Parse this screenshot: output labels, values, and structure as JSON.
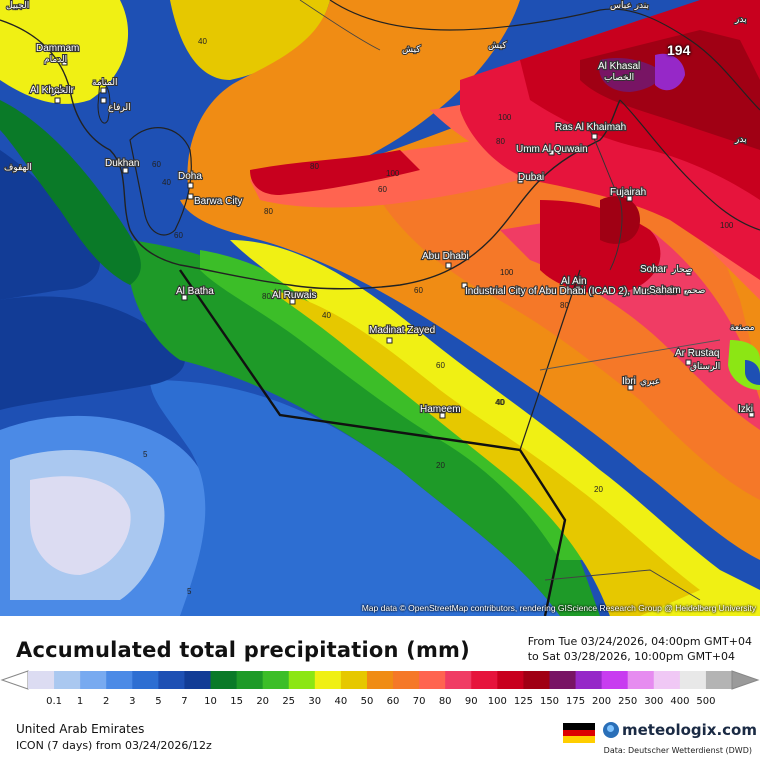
{
  "map": {
    "attribution": "Map data © OpenStreetMap contributors, rendering GIScience Research Group @ Heidelberg University",
    "peak_value": "194",
    "cities": [
      {
        "name": "Dammam",
        "name_ar": "الدمام"
      },
      {
        "name": "Al Khobar",
        "name_ar": "الخبر"
      },
      {
        "name": "المنامة",
        "name_ar": "الرفاع"
      },
      {
        "name": "Dukhan",
        "name_ar": ""
      },
      {
        "name": "Doha",
        "name_ar": ""
      },
      {
        "name": "Barwa City",
        "name_ar": ""
      },
      {
        "name": "Al Batha",
        "name_ar": ""
      },
      {
        "name": "Al Ruwais",
        "name_ar": ""
      },
      {
        "name": "Madinat Zayed",
        "name_ar": ""
      },
      {
        "name": "Hameem",
        "name_ar": ""
      },
      {
        "name": "Abu Dhabi",
        "name_ar": ""
      },
      {
        "name": "Industrial City of Abu Dhabi (ICAD 2), Mussafah",
        "name_ar": ""
      },
      {
        "name": "Dubai",
        "name_ar": ""
      },
      {
        "name": "Umm Al Quwain",
        "name_ar": ""
      },
      {
        "name": "Ras Al Khaimah",
        "name_ar": ""
      },
      {
        "name": "Al Khasal",
        "name_ar": "الخصاب"
      },
      {
        "name": "Fujairah",
        "name_ar": ""
      },
      {
        "name": "Al Ain",
        "name_ar": ""
      },
      {
        "name": "Sohar",
        "name_ar": "صحار"
      },
      {
        "name": "Saham",
        "name_ar": "صحم"
      },
      {
        "name": "Ar Rustaq",
        "name_ar": "الرستاق"
      },
      {
        "name": "Ibri",
        "name_ar": "عبري"
      },
      {
        "name": "Izki",
        "name_ar": ""
      }
    ],
    "extra_labels": [
      "الجبيل",
      "الهفوف",
      "كيش",
      "كيش",
      "بندر عباس",
      "بدر",
      "بدر",
      "مصنعة"
    ],
    "contour_labels": [
      "40",
      "60",
      "40",
      "60",
      "80",
      "100",
      "80",
      "60",
      "80",
      "100",
      "60",
      "40",
      "40",
      "60",
      "80",
      "100",
      "80",
      "40",
      "20",
      "20",
      "5",
      "5",
      "100"
    ]
  },
  "header": {
    "title": "Accumulated total precipitation (mm)",
    "period_from": "From Tue 03/24/2026, 04:00pm GMT+04",
    "period_to": "to Sat 03/28/2026, 10:00pm GMT+04"
  },
  "legend": {
    "ticks": [
      "0.1",
      "1",
      "2",
      "3",
      "5",
      "7",
      "10",
      "15",
      "20",
      "25",
      "30",
      "40",
      "50",
      "60",
      "70",
      "80",
      "90",
      "100",
      "125",
      "150",
      "175",
      "200",
      "250",
      "300",
      "400",
      "500"
    ],
    "colors": [
      "#dcdcf2",
      "#aac8f0",
      "#78aaf0",
      "#4b8ae6",
      "#2d6ed2",
      "#1e50b4",
      "#123c96",
      "#0a7a28",
      "#1e9a28",
      "#3cbe28",
      "#8ce614",
      "#f0f014",
      "#e6c800",
      "#f08c14",
      "#f57828",
      "#ff6450",
      "#f03c64",
      "#e6143c",
      "#c8001e",
      "#a00014",
      "#781464",
      "#9628c8",
      "#c83cf0",
      "#e68cf0",
      "#f0c8f5",
      "#e8e8e8",
      "#b4b4b4"
    ],
    "min_label": "0.1",
    "max_label": "500"
  },
  "footer": {
    "region": "United Arab Emirates",
    "model": "ICON (7 days)  from  03/24/2026/12z",
    "brand": "meteologix.com",
    "source": "Data: Deutscher Wetterdienst (DWD)",
    "flag_colors": [
      "#000000",
      "#dd0000",
      "#ffce00"
    ]
  }
}
